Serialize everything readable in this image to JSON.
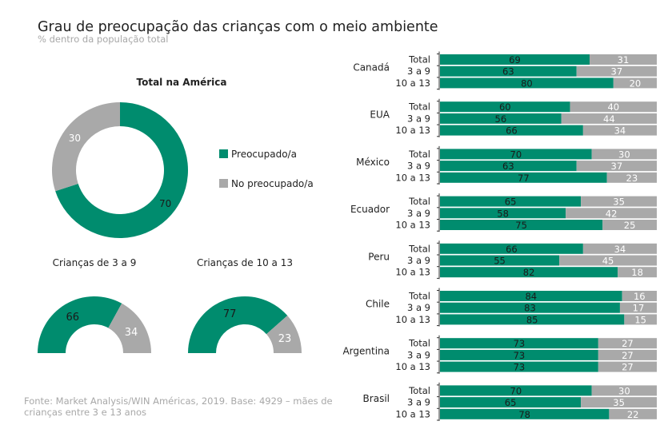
{
  "title": "Grau de preocupação das crianças com o meio ambiente",
  "subtitle": "% dentro da população total",
  "footer": "Fonte: Market Analysis/WIN Américas, 2019. Base: 4929 – mães de crianças entre 3 e 13 anos",
  "colors": {
    "preocupado": "#008c6e",
    "nao_preocupado": "#a9a9a9"
  },
  "chart_data": [
    {
      "type": "pie",
      "variant": "donut",
      "title": "Total na América",
      "legend": [
        "Preocupado/a",
        "No preocupado/a"
      ],
      "legend_position": "right",
      "values": [
        70,
        30
      ]
    },
    {
      "type": "pie",
      "variant": "half-donut",
      "title": "Crianças de 3 a 9",
      "values": [
        66,
        34
      ]
    },
    {
      "type": "pie",
      "variant": "half-donut",
      "title": "Crianças de 10 a 13",
      "values": [
        77,
        23
      ]
    },
    {
      "type": "bar",
      "orientation": "horizontal",
      "stacked": true,
      "xlim": [
        0,
        100
      ],
      "series_order": [
        "Preocupado/a",
        "No preocupado/a"
      ],
      "row_labels": [
        "Total",
        "3 a 9",
        "10 a 13"
      ],
      "groups": [
        {
          "country": "Canadá",
          "preocupado": [
            69,
            63,
            80
          ],
          "nao_preocupado": [
            31,
            37,
            20
          ]
        },
        {
          "country": "EUA",
          "preocupado": [
            60,
            56,
            66
          ],
          "nao_preocupado": [
            40,
            44,
            34
          ]
        },
        {
          "country": "México",
          "preocupado": [
            70,
            63,
            77
          ],
          "nao_preocupado": [
            30,
            37,
            23
          ]
        },
        {
          "country": "Ecuador",
          "preocupado": [
            65,
            58,
            75
          ],
          "nao_preocupado": [
            35,
            42,
            25
          ]
        },
        {
          "country": "Peru",
          "preocupado": [
            66,
            55,
            82
          ],
          "nao_preocupado": [
            34,
            45,
            18
          ]
        },
        {
          "country": "Chile",
          "preocupado": [
            84,
            83,
            85
          ],
          "nao_preocupado": [
            16,
            17,
            15
          ]
        },
        {
          "country": "Argentina",
          "preocupado": [
            73,
            73,
            73
          ],
          "nao_preocupado": [
            27,
            27,
            27
          ]
        },
        {
          "country": "Brasil",
          "preocupado": [
            70,
            65,
            78
          ],
          "nao_preocupado": [
            30,
            35,
            22
          ]
        }
      ]
    }
  ]
}
